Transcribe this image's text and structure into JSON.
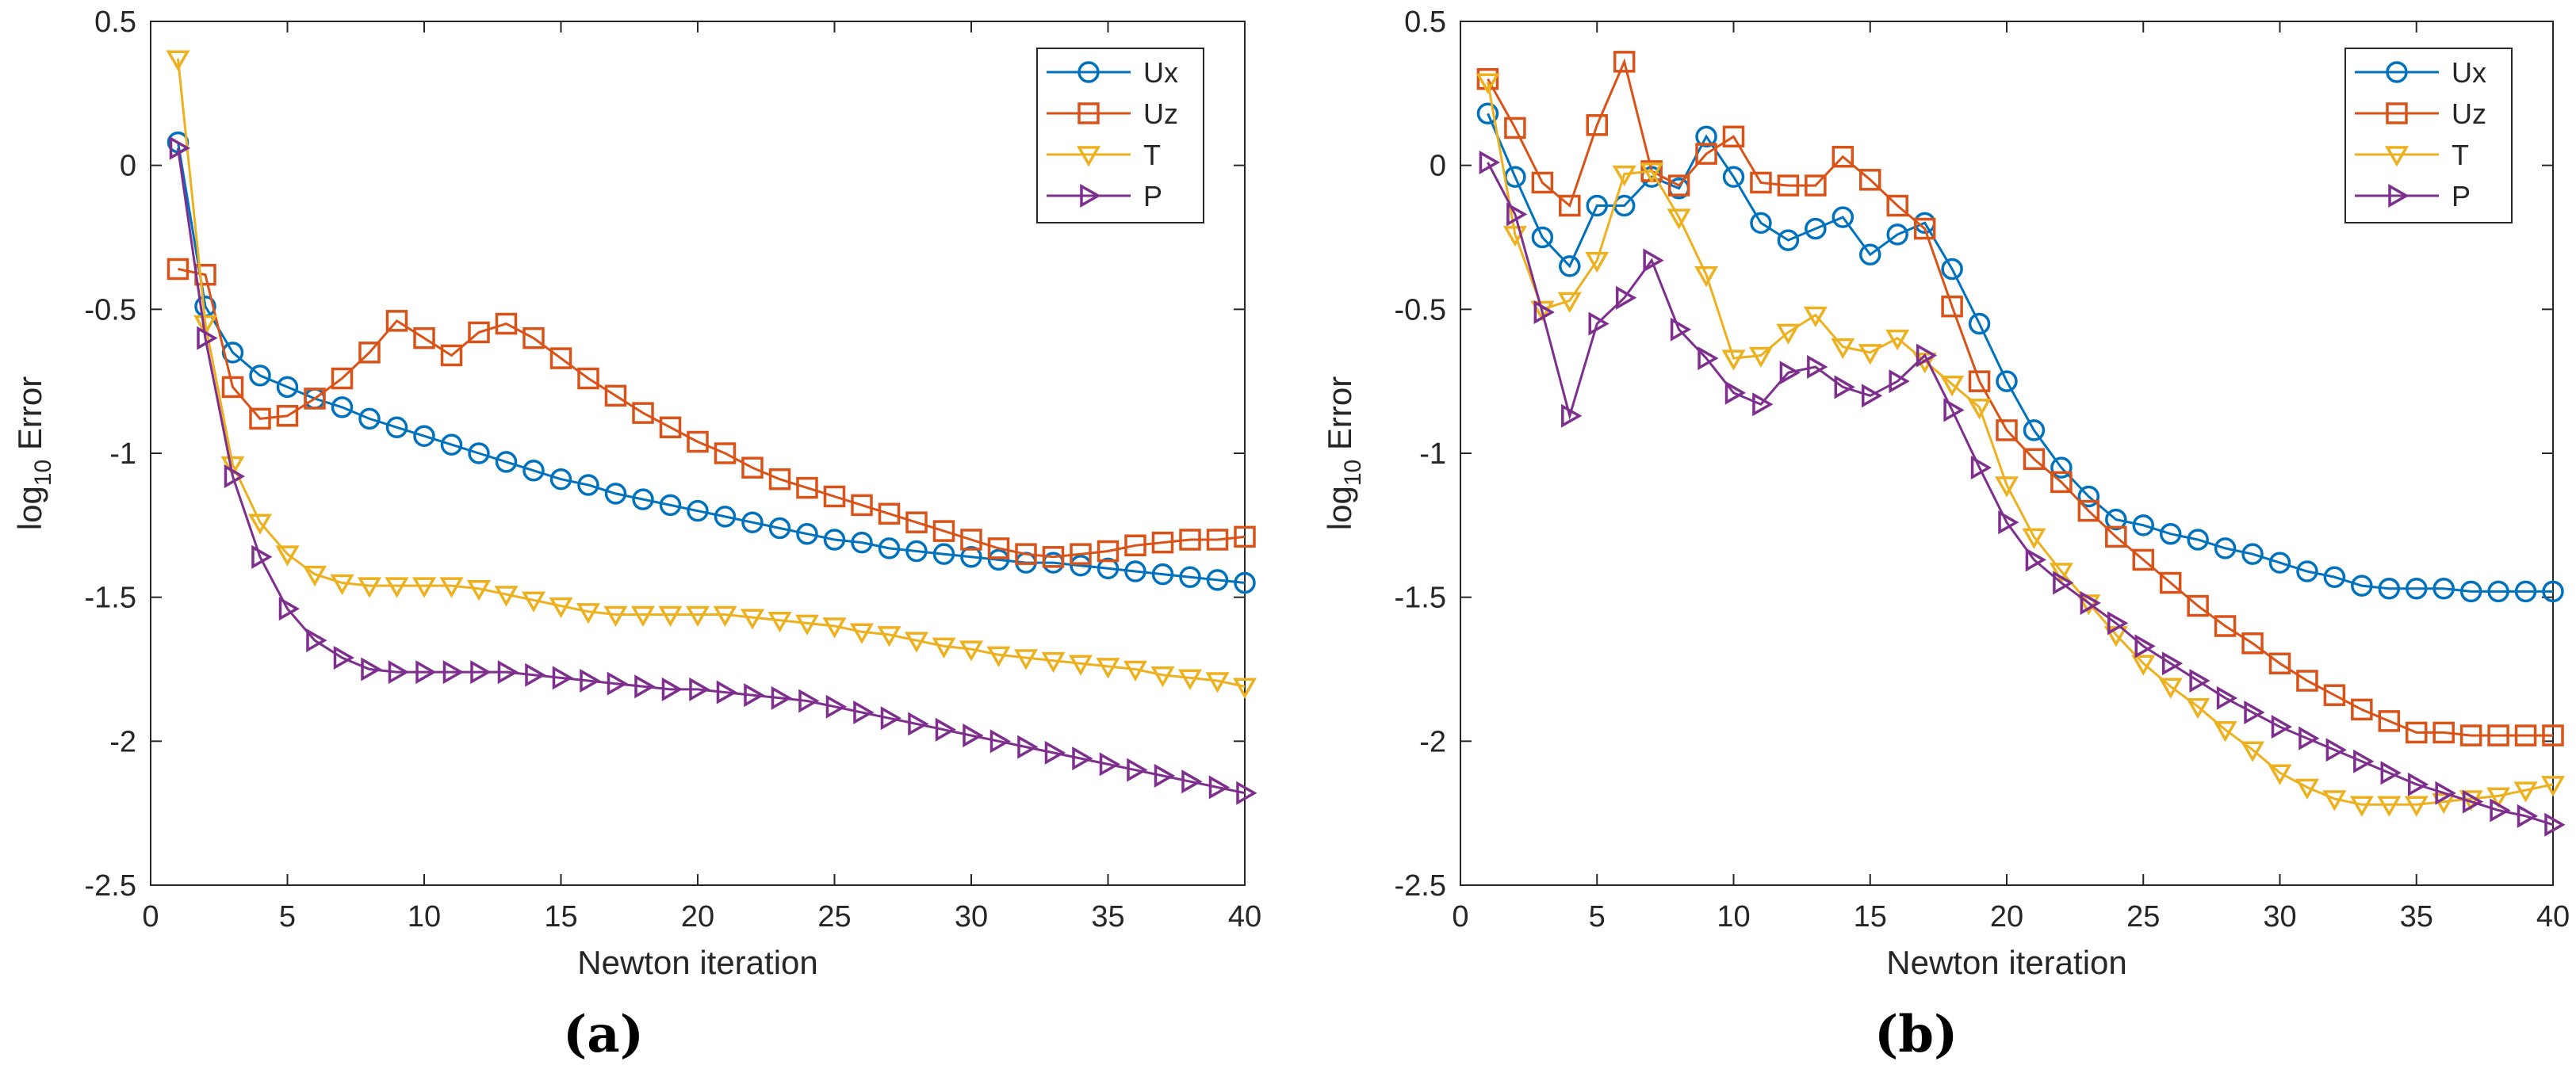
{
  "figure": {
    "captions": [
      "(a)",
      "(b)"
    ]
  },
  "chart_data": [
    {
      "type": "line",
      "panel_label": "(a)",
      "xlabel": "Newton iteration",
      "ylabel_base": "log",
      "ylabel_sub": "10",
      "ylabel_rest": " Error",
      "xlim": [
        0,
        40
      ],
      "ylim": [
        -2.5,
        0.5
      ],
      "xticks": [
        0,
        5,
        10,
        15,
        20,
        25,
        30,
        35,
        40
      ],
      "xtick_labels": [
        "0",
        "5",
        "10",
        "15",
        "20",
        "25",
        "30",
        "35",
        "40"
      ],
      "yticks": [
        0.5,
        0,
        -0.5,
        -1,
        -1.5,
        -2,
        -2.5
      ],
      "ytick_labels": [
        "0.5",
        "0",
        "-0.5",
        "-1",
        "-1.5",
        "-2",
        "-2.5"
      ],
      "grid": false,
      "legend_position": "top-right",
      "x": [
        1,
        2,
        3,
        4,
        5,
        6,
        7,
        8,
        9,
        10,
        11,
        12,
        13,
        14,
        15,
        16,
        17,
        18,
        19,
        20,
        21,
        22,
        23,
        24,
        25,
        26,
        27,
        28,
        29,
        30,
        31,
        32,
        33,
        34,
        35,
        36,
        37,
        38,
        39,
        40
      ],
      "series": [
        {
          "name": "Ux",
          "color": "#0072BD",
          "marker": "circle",
          "values": [
            0.08,
            -0.49,
            -0.65,
            -0.73,
            -0.77,
            -0.81,
            -0.84,
            -0.88,
            -0.91,
            -0.94,
            -0.97,
            -1.0,
            -1.03,
            -1.06,
            -1.09,
            -1.11,
            -1.14,
            -1.16,
            -1.18,
            -1.2,
            -1.22,
            -1.24,
            -1.26,
            -1.28,
            -1.3,
            -1.31,
            -1.33,
            -1.34,
            -1.35,
            -1.36,
            -1.37,
            -1.38,
            -1.38,
            -1.39,
            -1.4,
            -1.41,
            -1.42,
            -1.43,
            -1.44,
            -1.45
          ]
        },
        {
          "name": "Uz",
          "color": "#D95319",
          "marker": "square",
          "values": [
            -0.36,
            -0.38,
            -0.77,
            -0.88,
            -0.87,
            -0.81,
            -0.74,
            -0.65,
            -0.54,
            -0.6,
            -0.66,
            -0.58,
            -0.55,
            -0.6,
            -0.67,
            -0.74,
            -0.8,
            -0.86,
            -0.91,
            -0.96,
            -1.0,
            -1.05,
            -1.09,
            -1.12,
            -1.15,
            -1.18,
            -1.21,
            -1.24,
            -1.27,
            -1.3,
            -1.33,
            -1.35,
            -1.36,
            -1.35,
            -1.34,
            -1.32,
            -1.31,
            -1.3,
            -1.3,
            -1.29
          ]
        },
        {
          "name": "T",
          "color": "#EDB120",
          "marker": "triangle-down",
          "values": [
            0.37,
            -0.55,
            -1.04,
            -1.24,
            -1.35,
            -1.42,
            -1.45,
            -1.46,
            -1.46,
            -1.46,
            -1.46,
            -1.47,
            -1.49,
            -1.51,
            -1.53,
            -1.55,
            -1.56,
            -1.56,
            -1.56,
            -1.56,
            -1.56,
            -1.57,
            -1.58,
            -1.59,
            -1.6,
            -1.62,
            -1.63,
            -1.65,
            -1.67,
            -1.68,
            -1.7,
            -1.71,
            -1.72,
            -1.73,
            -1.74,
            -1.75,
            -1.77,
            -1.78,
            -1.79,
            -1.81
          ]
        },
        {
          "name": "P",
          "color": "#7E2F8E",
          "marker": "triangle-right",
          "values": [
            0.06,
            -0.6,
            -1.08,
            -1.36,
            -1.54,
            -1.65,
            -1.71,
            -1.75,
            -1.76,
            -1.76,
            -1.76,
            -1.76,
            -1.76,
            -1.77,
            -1.78,
            -1.79,
            -1.8,
            -1.81,
            -1.82,
            -1.82,
            -1.83,
            -1.84,
            -1.85,
            -1.86,
            -1.88,
            -1.9,
            -1.92,
            -1.94,
            -1.96,
            -1.98,
            -2.0,
            -2.02,
            -2.04,
            -2.06,
            -2.08,
            -2.1,
            -2.12,
            -2.14,
            -2.16,
            -2.18
          ]
        }
      ]
    },
    {
      "type": "line",
      "panel_label": "(b)",
      "xlabel": "Newton iteration",
      "ylabel_base": "log",
      "ylabel_sub": "10",
      "ylabel_rest": " Error",
      "xlim": [
        0,
        40
      ],
      "ylim": [
        -2.5,
        0.5
      ],
      "xticks": [
        0,
        5,
        10,
        15,
        20,
        25,
        30,
        35,
        40
      ],
      "xtick_labels": [
        "0",
        "5",
        "10",
        "15",
        "20",
        "25",
        "30",
        "35",
        "40"
      ],
      "yticks": [
        0.5,
        0,
        -0.5,
        -1,
        -1.5,
        -2,
        -2.5
      ],
      "ytick_labels": [
        "0.5",
        "0",
        "-0.5",
        "-1",
        "-1.5",
        "-2",
        "-2.5"
      ],
      "grid": false,
      "legend_position": "top-right",
      "x": [
        1,
        2,
        3,
        4,
        5,
        6,
        7,
        8,
        9,
        10,
        11,
        12,
        13,
        14,
        15,
        16,
        17,
        18,
        19,
        20,
        21,
        22,
        23,
        24,
        25,
        26,
        27,
        28,
        29,
        30,
        31,
        32,
        33,
        34,
        35,
        36,
        37,
        38,
        39,
        40
      ],
      "series": [
        {
          "name": "Ux",
          "color": "#0072BD",
          "marker": "circle",
          "values": [
            0.18,
            -0.04,
            -0.25,
            -0.35,
            -0.14,
            -0.14,
            -0.04,
            -0.08,
            0.1,
            -0.04,
            -0.2,
            -0.26,
            -0.22,
            -0.18,
            -0.31,
            -0.24,
            -0.2,
            -0.36,
            -0.55,
            -0.75,
            -0.92,
            -1.05,
            -1.15,
            -1.23,
            -1.25,
            -1.28,
            -1.3,
            -1.33,
            -1.35,
            -1.38,
            -1.41,
            -1.43,
            -1.46,
            -1.47,
            -1.47,
            -1.47,
            -1.48,
            -1.48,
            -1.48,
            -1.48
          ]
        },
        {
          "name": "Uz",
          "color": "#D95319",
          "marker": "square",
          "values": [
            0.3,
            0.13,
            -0.06,
            -0.14,
            0.14,
            0.36,
            -0.02,
            -0.07,
            0.04,
            0.1,
            -0.06,
            -0.07,
            -0.07,
            0.03,
            -0.05,
            -0.14,
            -0.22,
            -0.49,
            -0.75,
            -0.92,
            -1.02,
            -1.1,
            -1.2,
            -1.29,
            -1.37,
            -1.45,
            -1.53,
            -1.6,
            -1.66,
            -1.73,
            -1.79,
            -1.84,
            -1.89,
            -1.93,
            -1.97,
            -1.97,
            -1.98,
            -1.98,
            -1.98,
            -1.98
          ]
        },
        {
          "name": "T",
          "color": "#EDB120",
          "marker": "triangle-down",
          "values": [
            0.29,
            -0.24,
            -0.5,
            -0.47,
            -0.33,
            -0.03,
            -0.02,
            -0.18,
            -0.38,
            -0.67,
            -0.66,
            -0.58,
            -0.52,
            -0.63,
            -0.65,
            -0.6,
            -0.68,
            -0.76,
            -0.84,
            -1.11,
            -1.29,
            -1.41,
            -1.52,
            -1.63,
            -1.73,
            -1.81,
            -1.88,
            -1.96,
            -2.03,
            -2.11,
            -2.16,
            -2.2,
            -2.22,
            -2.22,
            -2.22,
            -2.21,
            -2.2,
            -2.19,
            -2.17,
            -2.15
          ]
        },
        {
          "name": "P",
          "color": "#7E2F8E",
          "marker": "triangle-right",
          "values": [
            0.01,
            -0.17,
            -0.51,
            -0.87,
            -0.55,
            -0.46,
            -0.33,
            -0.57,
            -0.67,
            -0.79,
            -0.83,
            -0.72,
            -0.7,
            -0.77,
            -0.8,
            -0.75,
            -0.66,
            -0.85,
            -1.05,
            -1.24,
            -1.37,
            -1.45,
            -1.52,
            -1.59,
            -1.67,
            -1.73,
            -1.79,
            -1.85,
            -1.9,
            -1.95,
            -1.99,
            -2.03,
            -2.07,
            -2.11,
            -2.15,
            -2.18,
            -2.21,
            -2.24,
            -2.26,
            -2.29
          ]
        }
      ]
    }
  ]
}
